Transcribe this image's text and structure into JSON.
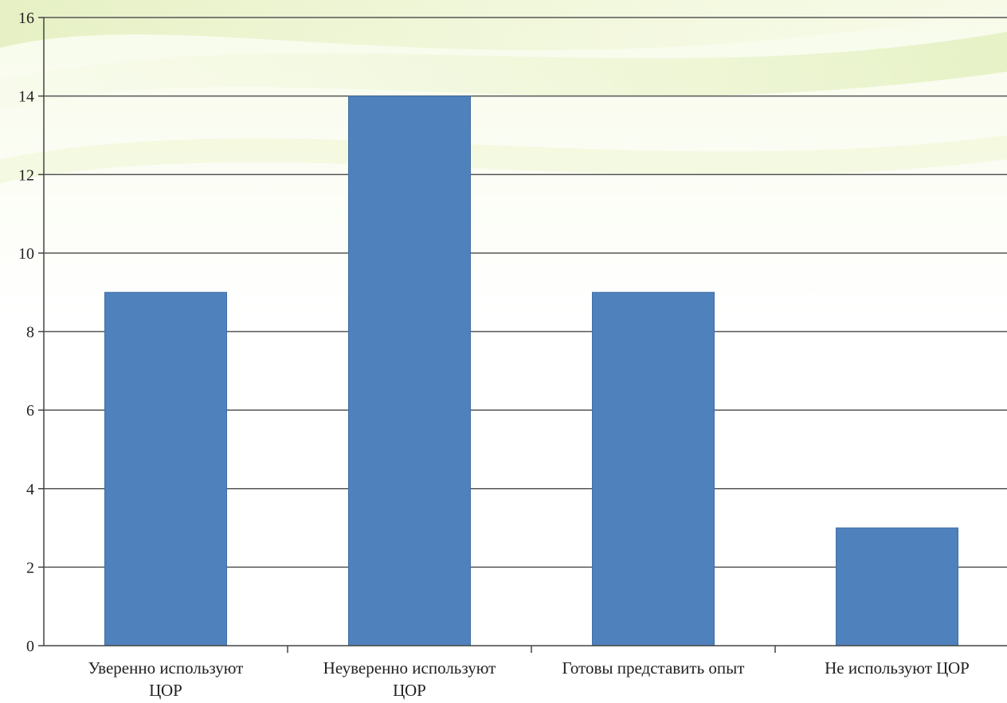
{
  "chart_data": {
    "type": "bar",
    "categories": [
      [
        "Уверенно используют",
        "ЦОР"
      ],
      [
        "Неуверенно используют",
        "ЦОР"
      ],
      [
        "Готовы представить опыт"
      ],
      [
        "Не используют  ЦОР"
      ]
    ],
    "values": [
      9,
      14,
      9,
      3
    ],
    "title": "",
    "xlabel": "",
    "ylabel": "",
    "ylim": [
      0,
      16
    ],
    "yticks": [
      "0",
      "2",
      "4",
      "6",
      "8",
      "10",
      "12",
      "14",
      "16"
    ],
    "grid": true,
    "legend": "none",
    "bar_color": "#4f81bd",
    "grid_color": "#555555"
  }
}
